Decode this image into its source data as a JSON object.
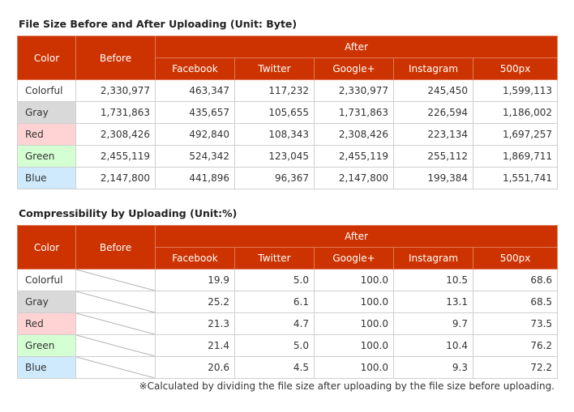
{
  "table1": {
    "title": "File Size Before and After Uploading (Unit: Byte)",
    "headers": {
      "color": "Color",
      "before": "Before",
      "after": "After",
      "services": [
        "Facebook",
        "Twitter",
        "Google+",
        "Instagram",
        "500px"
      ]
    },
    "rows": [
      {
        "color": "Colorful",
        "before": "2,330,977",
        "values": [
          "463,347",
          "117,232",
          "2,330,977",
          "245,450",
          "1,599,113"
        ]
      },
      {
        "color": "Gray",
        "before": "1,731,863",
        "values": [
          "435,657",
          "105,655",
          "1,731,863",
          "226,594",
          "1,186,002"
        ]
      },
      {
        "color": "Red",
        "before": "2,308,426",
        "values": [
          "492,840",
          "108,343",
          "2,308,426",
          "223,134",
          "1,697,257"
        ]
      },
      {
        "color": "Green",
        "before": "2,455,119",
        "values": [
          "524,342",
          "123,045",
          "2,455,119",
          "255,112",
          "1,869,711"
        ]
      },
      {
        "color": "Blue",
        "before": "2,147,800",
        "values": [
          "441,896",
          "96,367",
          "2,147,800",
          "199,384",
          "1,551,741"
        ]
      }
    ]
  },
  "table2": {
    "title": "Compressibility by Uploading (Unit:%)",
    "headers": {
      "color": "Color",
      "before": "Before",
      "after": "After",
      "services": [
        "Facebook",
        "Twitter",
        "Google+",
        "Instagram",
        "500px"
      ]
    },
    "rows": [
      {
        "color": "Colorful",
        "values": [
          "19.9",
          "5.0",
          "100.0",
          "10.5",
          "68.6"
        ]
      },
      {
        "color": "Gray",
        "values": [
          "25.2",
          "6.1",
          "100.0",
          "13.1",
          "68.5"
        ]
      },
      {
        "color": "Red",
        "values": [
          "21.3",
          "4.7",
          "100.0",
          "9.7",
          "73.5"
        ]
      },
      {
        "color": "Green",
        "values": [
          "21.4",
          "5.0",
          "100.0",
          "10.4",
          "76.2"
        ]
      },
      {
        "color": "Blue",
        "values": [
          "20.6",
          "4.5",
          "100.0",
          "9.3",
          "72.2"
        ]
      }
    ],
    "note": "※Calculated by dividing the file size after uploading by the file size before uploading."
  },
  "colors": {
    "header_bg": "#cc3300",
    "gray": "#d9d9d9",
    "red": "#ffd3d3",
    "green": "#d3ffd3",
    "blue": "#cfeafd"
  }
}
